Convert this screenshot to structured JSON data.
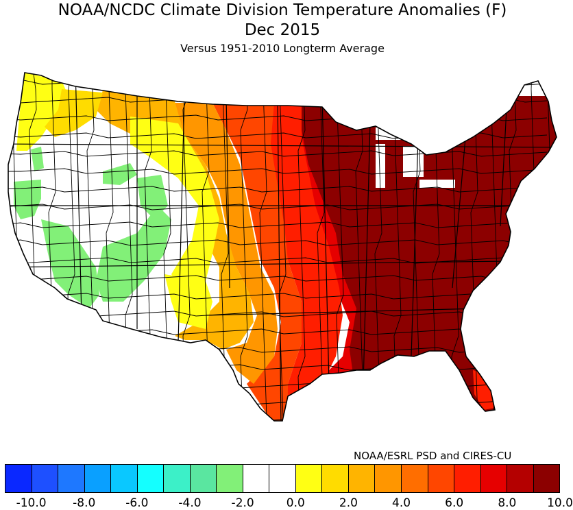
{
  "header": {
    "title": "NOAA/NCDC Climate Division Temperature Anomalies (F)",
    "subtitle": "Dec 2015",
    "caption": "Versus 1951-2010 Longterm Average"
  },
  "credit": "NOAA/ESRL PSD and CIRES-CU",
  "legend": {
    "colors": [
      "#0a28ff",
      "#1e50ff",
      "#1e78ff",
      "#0aa0ff",
      "#0ac8ff",
      "#14ffff",
      "#3cf0c8",
      "#5ae6a0",
      "#82f078",
      "#ffffff",
      "#ffffff",
      "#ffff14",
      "#ffdc00",
      "#ffb400",
      "#ff9600",
      "#ff6e00",
      "#ff4600",
      "#ff1e00",
      "#e60000",
      "#b40000",
      "#8c0000"
    ],
    "ticks": [
      "-10.0",
      "-8.0",
      "-6.0",
      "-4.0",
      "-2.0",
      "0.0",
      "2.0",
      "4.0",
      "6.0",
      "8.0",
      "10.0"
    ]
  },
  "anomaly_bands": [
    {
      "range": "below -2.0",
      "color": "#82f078"
    },
    {
      "range": "-1.0 to 1.0",
      "color": "#ffffff"
    },
    {
      "range": "1.0 to 2.0",
      "color": "#ffff14"
    },
    {
      "range": "2.0 to 3.0",
      "color": "#ffdc00"
    },
    {
      "range": "3.0 to 4.0",
      "color": "#ffb400"
    },
    {
      "range": "4.0 to 5.0",
      "color": "#ff9600"
    },
    {
      "range": "5.0 to 6.0",
      "color": "#ff6e00"
    },
    {
      "range": "6.0 to 7.0",
      "color": "#ff4600"
    },
    {
      "range": "7.0 to 8.0",
      "color": "#ff1e00"
    },
    {
      "range": "8.0 to 9.0",
      "color": "#e60000"
    },
    {
      "range": "9.0 to 10.0",
      "color": "#b40000"
    },
    {
      "range": "above 10.0",
      "color": "#8c0000"
    }
  ]
}
